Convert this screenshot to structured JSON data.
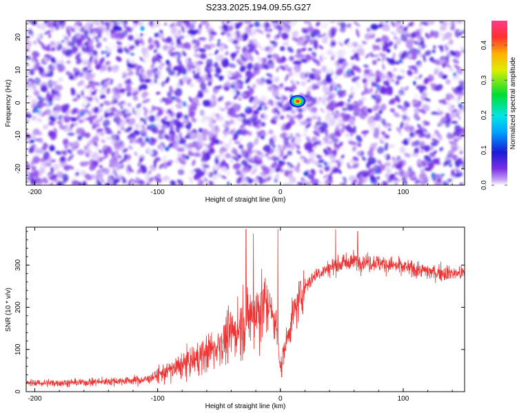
{
  "title": "S233.2025.194.09.55.G27",
  "colors": {
    "snr_line": "#ee3333",
    "heatmap_background": "#ffffff",
    "heatmap_primary": "#7b2fe6"
  },
  "chart_data": [
    {
      "type": "heatmap",
      "xlabel": "Height of straight line (km)",
      "ylabel": "Frequency (Hz)",
      "xlim": [
        -207,
        150
      ],
      "ylim": [
        -25,
        25
      ],
      "x_ticks": [
        -200,
        -100,
        0,
        100
      ],
      "x_tick_labels": [
        "-200",
        "-100",
        "0",
        "100"
      ],
      "y_ticks": [
        -20,
        -10,
        0,
        10,
        20
      ],
      "y_tick_labels": [
        "-20",
        "-10",
        "0",
        "10",
        "20"
      ],
      "colorbar": {
        "label": "Normalized spectral amplitude",
        "range": [
          0,
          0.47
        ],
        "ticks": [
          0.0,
          0.1,
          0.2,
          0.3,
          0.4
        ],
        "tick_labels": [
          "0.0",
          "0.1",
          "0.2",
          "0.3",
          "0.4"
        ]
      },
      "peak": {
        "x": 14,
        "y": 0.5,
        "amplitude": 0.45
      },
      "background_amplitude_range": [
        0.0,
        0.08
      ]
    },
    {
      "type": "line",
      "xlabel": "Height of straight line (km)",
      "ylabel": "SNR (10 * v/v)",
      "xlim": [
        -207,
        150
      ],
      "ylim": [
        0,
        390
      ],
      "x_ticks": [
        -200,
        -100,
        0,
        100
      ],
      "x_tick_labels": [
        "-200",
        "-100",
        "0",
        "100"
      ],
      "y_ticks": [
        0,
        100,
        200,
        300
      ],
      "y_tick_labels": [
        "0",
        "100",
        "200",
        "300"
      ],
      "trend": [
        {
          "x": -207,
          "y": 20
        },
        {
          "x": -160,
          "y": 22
        },
        {
          "x": -110,
          "y": 28
        },
        {
          "x": -90,
          "y": 50
        },
        {
          "x": -70,
          "y": 75
        },
        {
          "x": -50,
          "y": 110
        },
        {
          "x": -35,
          "y": 150
        },
        {
          "x": -20,
          "y": 190
        },
        {
          "x": -10,
          "y": 210
        },
        {
          "x": -3,
          "y": 150
        },
        {
          "x": 0,
          "y": 60
        },
        {
          "x": 10,
          "y": 180
        },
        {
          "x": 20,
          "y": 250
        },
        {
          "x": 30,
          "y": 280
        },
        {
          "x": 45,
          "y": 300
        },
        {
          "x": 60,
          "y": 310
        },
        {
          "x": 80,
          "y": 305
        },
        {
          "x": 100,
          "y": 295
        },
        {
          "x": 125,
          "y": 283
        },
        {
          "x": 150,
          "y": 280
        }
      ],
      "spikes": [
        {
          "x": -28,
          "y": 385
        },
        {
          "x": -22,
          "y": 375
        },
        {
          "x": -2,
          "y": 385
        },
        {
          "x": 1,
          "y": 35
        },
        {
          "x": 45,
          "y": 385
        },
        {
          "x": 63,
          "y": 380
        }
      ]
    }
  ]
}
